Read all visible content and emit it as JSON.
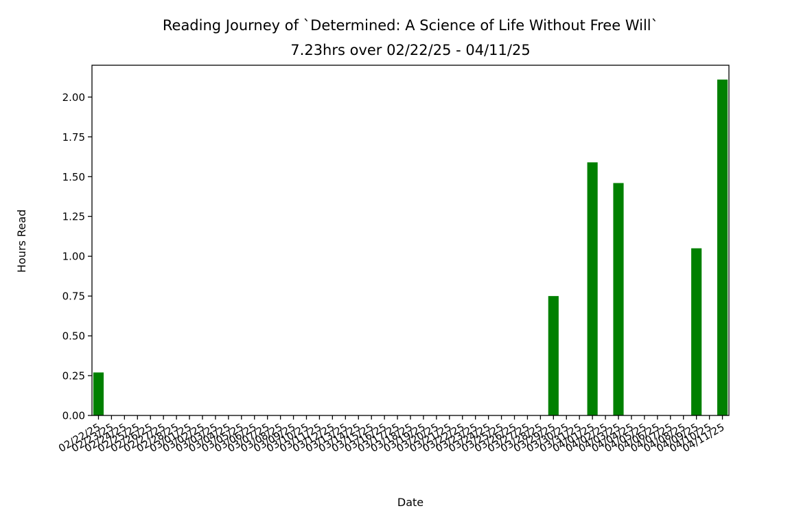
{
  "chart_data": {
    "type": "bar",
    "title": "Reading Journey of `Determined: A Science of Life Without Free Will`",
    "subtitle": "7.23hrs over 02/22/25 - 04/11/25",
    "xlabel": "Date",
    "ylabel": "Hours Read",
    "ylim": [
      0,
      2.2
    ],
    "yticks": [
      "0.00",
      "0.25",
      "0.50",
      "0.75",
      "1.00",
      "1.25",
      "1.50",
      "1.75",
      "2.00"
    ],
    "grid": false,
    "bar_color": "#008000",
    "categories": [
      "02/22/25",
      "02/23/25",
      "02/24/25",
      "02/25/25",
      "02/26/25",
      "02/27/25",
      "02/28/25",
      "03/01/25",
      "03/02/25",
      "03/03/25",
      "03/04/25",
      "03/05/25",
      "03/06/25",
      "03/07/25",
      "03/08/25",
      "03/09/25",
      "03/10/25",
      "03/11/25",
      "03/12/25",
      "03/13/25",
      "03/14/25",
      "03/15/25",
      "03/16/25",
      "03/17/25",
      "03/18/25",
      "03/19/25",
      "03/20/25",
      "03/21/25",
      "03/22/25",
      "03/23/25",
      "03/24/25",
      "03/25/25",
      "03/26/25",
      "03/27/25",
      "03/28/25",
      "03/29/25",
      "03/30/25",
      "03/31/25",
      "04/01/25",
      "04/02/25",
      "04/03/25",
      "04/04/25",
      "04/05/25",
      "04/06/25",
      "04/07/25",
      "04/08/25",
      "04/09/25",
      "04/10/25",
      "04/11/25"
    ],
    "values": [
      0.27,
      0,
      0,
      0,
      0,
      0,
      0,
      0,
      0,
      0,
      0,
      0,
      0,
      0,
      0,
      0,
      0,
      0,
      0,
      0,
      0,
      0,
      0,
      0,
      0,
      0,
      0,
      0,
      0,
      0,
      0,
      0,
      0,
      0,
      0,
      0.75,
      0,
      0,
      1.59,
      0,
      1.46,
      0,
      0,
      0,
      0,
      0,
      1.05,
      0,
      2.11
    ]
  }
}
